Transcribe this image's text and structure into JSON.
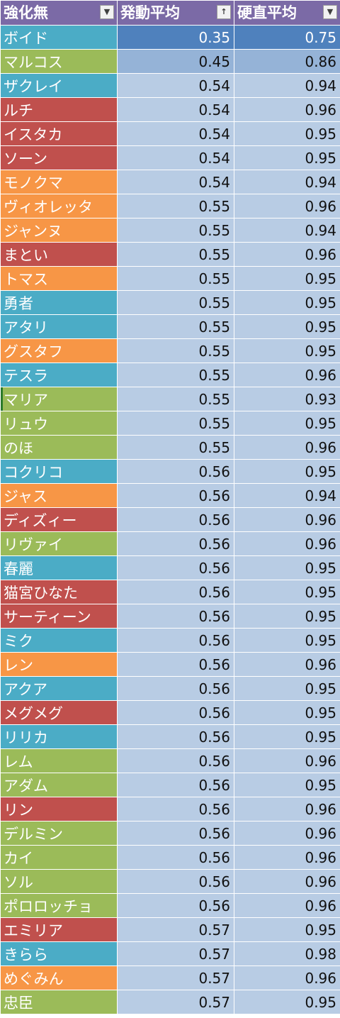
{
  "columns": [
    {
      "label": "強化無",
      "filter_icon": "dropdown-arrow-icon",
      "glyph": "▼"
    },
    {
      "label": "発動平均",
      "filter_icon": "sort-ascending-icon",
      "glyph": "↑"
    },
    {
      "label": "硬直平均",
      "filter_icon": "dropdown-arrow-icon",
      "glyph": "▼"
    }
  ],
  "colors": {
    "header": "#7b6aa6",
    "blue": "#4bacc6",
    "green": "#9bbb59",
    "red": "#c0504d",
    "orange": "#f79646",
    "value_light": "#b8cce4",
    "value_mid": "#95b3d7",
    "value_dark": "#4f81bd"
  },
  "rows": [
    {
      "name": "ボイド",
      "color": "blue",
      "activation": "0.35",
      "stiffness": "0.75",
      "shade": "dark"
    },
    {
      "name": "マルコス",
      "color": "green",
      "activation": "0.45",
      "stiffness": "0.86",
      "shade": "mid"
    },
    {
      "name": "ザクレイ",
      "color": "blue",
      "activation": "0.54",
      "stiffness": "0.94"
    },
    {
      "name": "ルチ",
      "color": "red",
      "activation": "0.54",
      "stiffness": "0.96"
    },
    {
      "name": "イスタカ",
      "color": "red",
      "activation": "0.54",
      "stiffness": "0.95"
    },
    {
      "name": "ソーン",
      "color": "red",
      "activation": "0.54",
      "stiffness": "0.95"
    },
    {
      "name": "モノクマ",
      "color": "orange",
      "activation": "0.54",
      "stiffness": "0.94"
    },
    {
      "name": "ヴィオレッタ",
      "color": "orange",
      "activation": "0.55",
      "stiffness": "0.96"
    },
    {
      "name": "ジャンヌ",
      "color": "orange",
      "activation": "0.55",
      "stiffness": "0.94"
    },
    {
      "name": "まとい",
      "color": "red",
      "activation": "0.55",
      "stiffness": "0.96"
    },
    {
      "name": "トマス",
      "color": "orange",
      "activation": "0.55",
      "stiffness": "0.95"
    },
    {
      "name": "勇者",
      "color": "blue",
      "activation": "0.55",
      "stiffness": "0.95"
    },
    {
      "name": "アタリ",
      "color": "blue",
      "activation": "0.55",
      "stiffness": "0.95"
    },
    {
      "name": "グスタフ",
      "color": "orange",
      "activation": "0.55",
      "stiffness": "0.95"
    },
    {
      "name": "テスラ",
      "color": "blue",
      "activation": "0.55",
      "stiffness": "0.96"
    },
    {
      "name": "マリア",
      "color": "green",
      "activation": "0.55",
      "stiffness": "0.93",
      "marked": true
    },
    {
      "name": "リュウ",
      "color": "green",
      "activation": "0.55",
      "stiffness": "0.95"
    },
    {
      "name": "のほ",
      "color": "green",
      "activation": "0.55",
      "stiffness": "0.96"
    },
    {
      "name": "コクリコ",
      "color": "blue",
      "activation": "0.56",
      "stiffness": "0.95"
    },
    {
      "name": "ジャス",
      "color": "orange",
      "activation": "0.56",
      "stiffness": "0.94"
    },
    {
      "name": "ディズィー",
      "color": "red",
      "activation": "0.56",
      "stiffness": "0.96"
    },
    {
      "name": "リヴァイ",
      "color": "green",
      "activation": "0.56",
      "stiffness": "0.96"
    },
    {
      "name": "春麗",
      "color": "blue",
      "activation": "0.56",
      "stiffness": "0.95"
    },
    {
      "name": "猫宮ひなた",
      "color": "red",
      "activation": "0.56",
      "stiffness": "0.95"
    },
    {
      "name": "サーティーン",
      "color": "red",
      "activation": "0.56",
      "stiffness": "0.95"
    },
    {
      "name": "ミク",
      "color": "blue",
      "activation": "0.56",
      "stiffness": "0.95"
    },
    {
      "name": "レン",
      "color": "orange",
      "activation": "0.56",
      "stiffness": "0.96"
    },
    {
      "name": "アクア",
      "color": "blue",
      "activation": "0.56",
      "stiffness": "0.95"
    },
    {
      "name": "メグメグ",
      "color": "red",
      "activation": "0.56",
      "stiffness": "0.95"
    },
    {
      "name": "リリカ",
      "color": "blue",
      "activation": "0.56",
      "stiffness": "0.95"
    },
    {
      "name": "レム",
      "color": "green",
      "activation": "0.56",
      "stiffness": "0.96"
    },
    {
      "name": "アダム",
      "color": "green",
      "activation": "0.56",
      "stiffness": "0.95"
    },
    {
      "name": "リン",
      "color": "red",
      "activation": "0.56",
      "stiffness": "0.96"
    },
    {
      "name": "デルミン",
      "color": "green",
      "activation": "0.56",
      "stiffness": "0.96"
    },
    {
      "name": "カイ",
      "color": "green",
      "activation": "0.56",
      "stiffness": "0.96"
    },
    {
      "name": "ソル",
      "color": "green",
      "activation": "0.56",
      "stiffness": "0.96"
    },
    {
      "name": "ポロロッチョ",
      "color": "green",
      "activation": "0.56",
      "stiffness": "0.96"
    },
    {
      "name": "エミリア",
      "color": "red",
      "activation": "0.57",
      "stiffness": "0.95"
    },
    {
      "name": "きらら",
      "color": "blue",
      "activation": "0.57",
      "stiffness": "0.98"
    },
    {
      "name": "めぐみん",
      "color": "orange",
      "activation": "0.57",
      "stiffness": "0.96"
    },
    {
      "name": "忠臣",
      "color": "green",
      "activation": "0.57",
      "stiffness": "0.95"
    }
  ]
}
